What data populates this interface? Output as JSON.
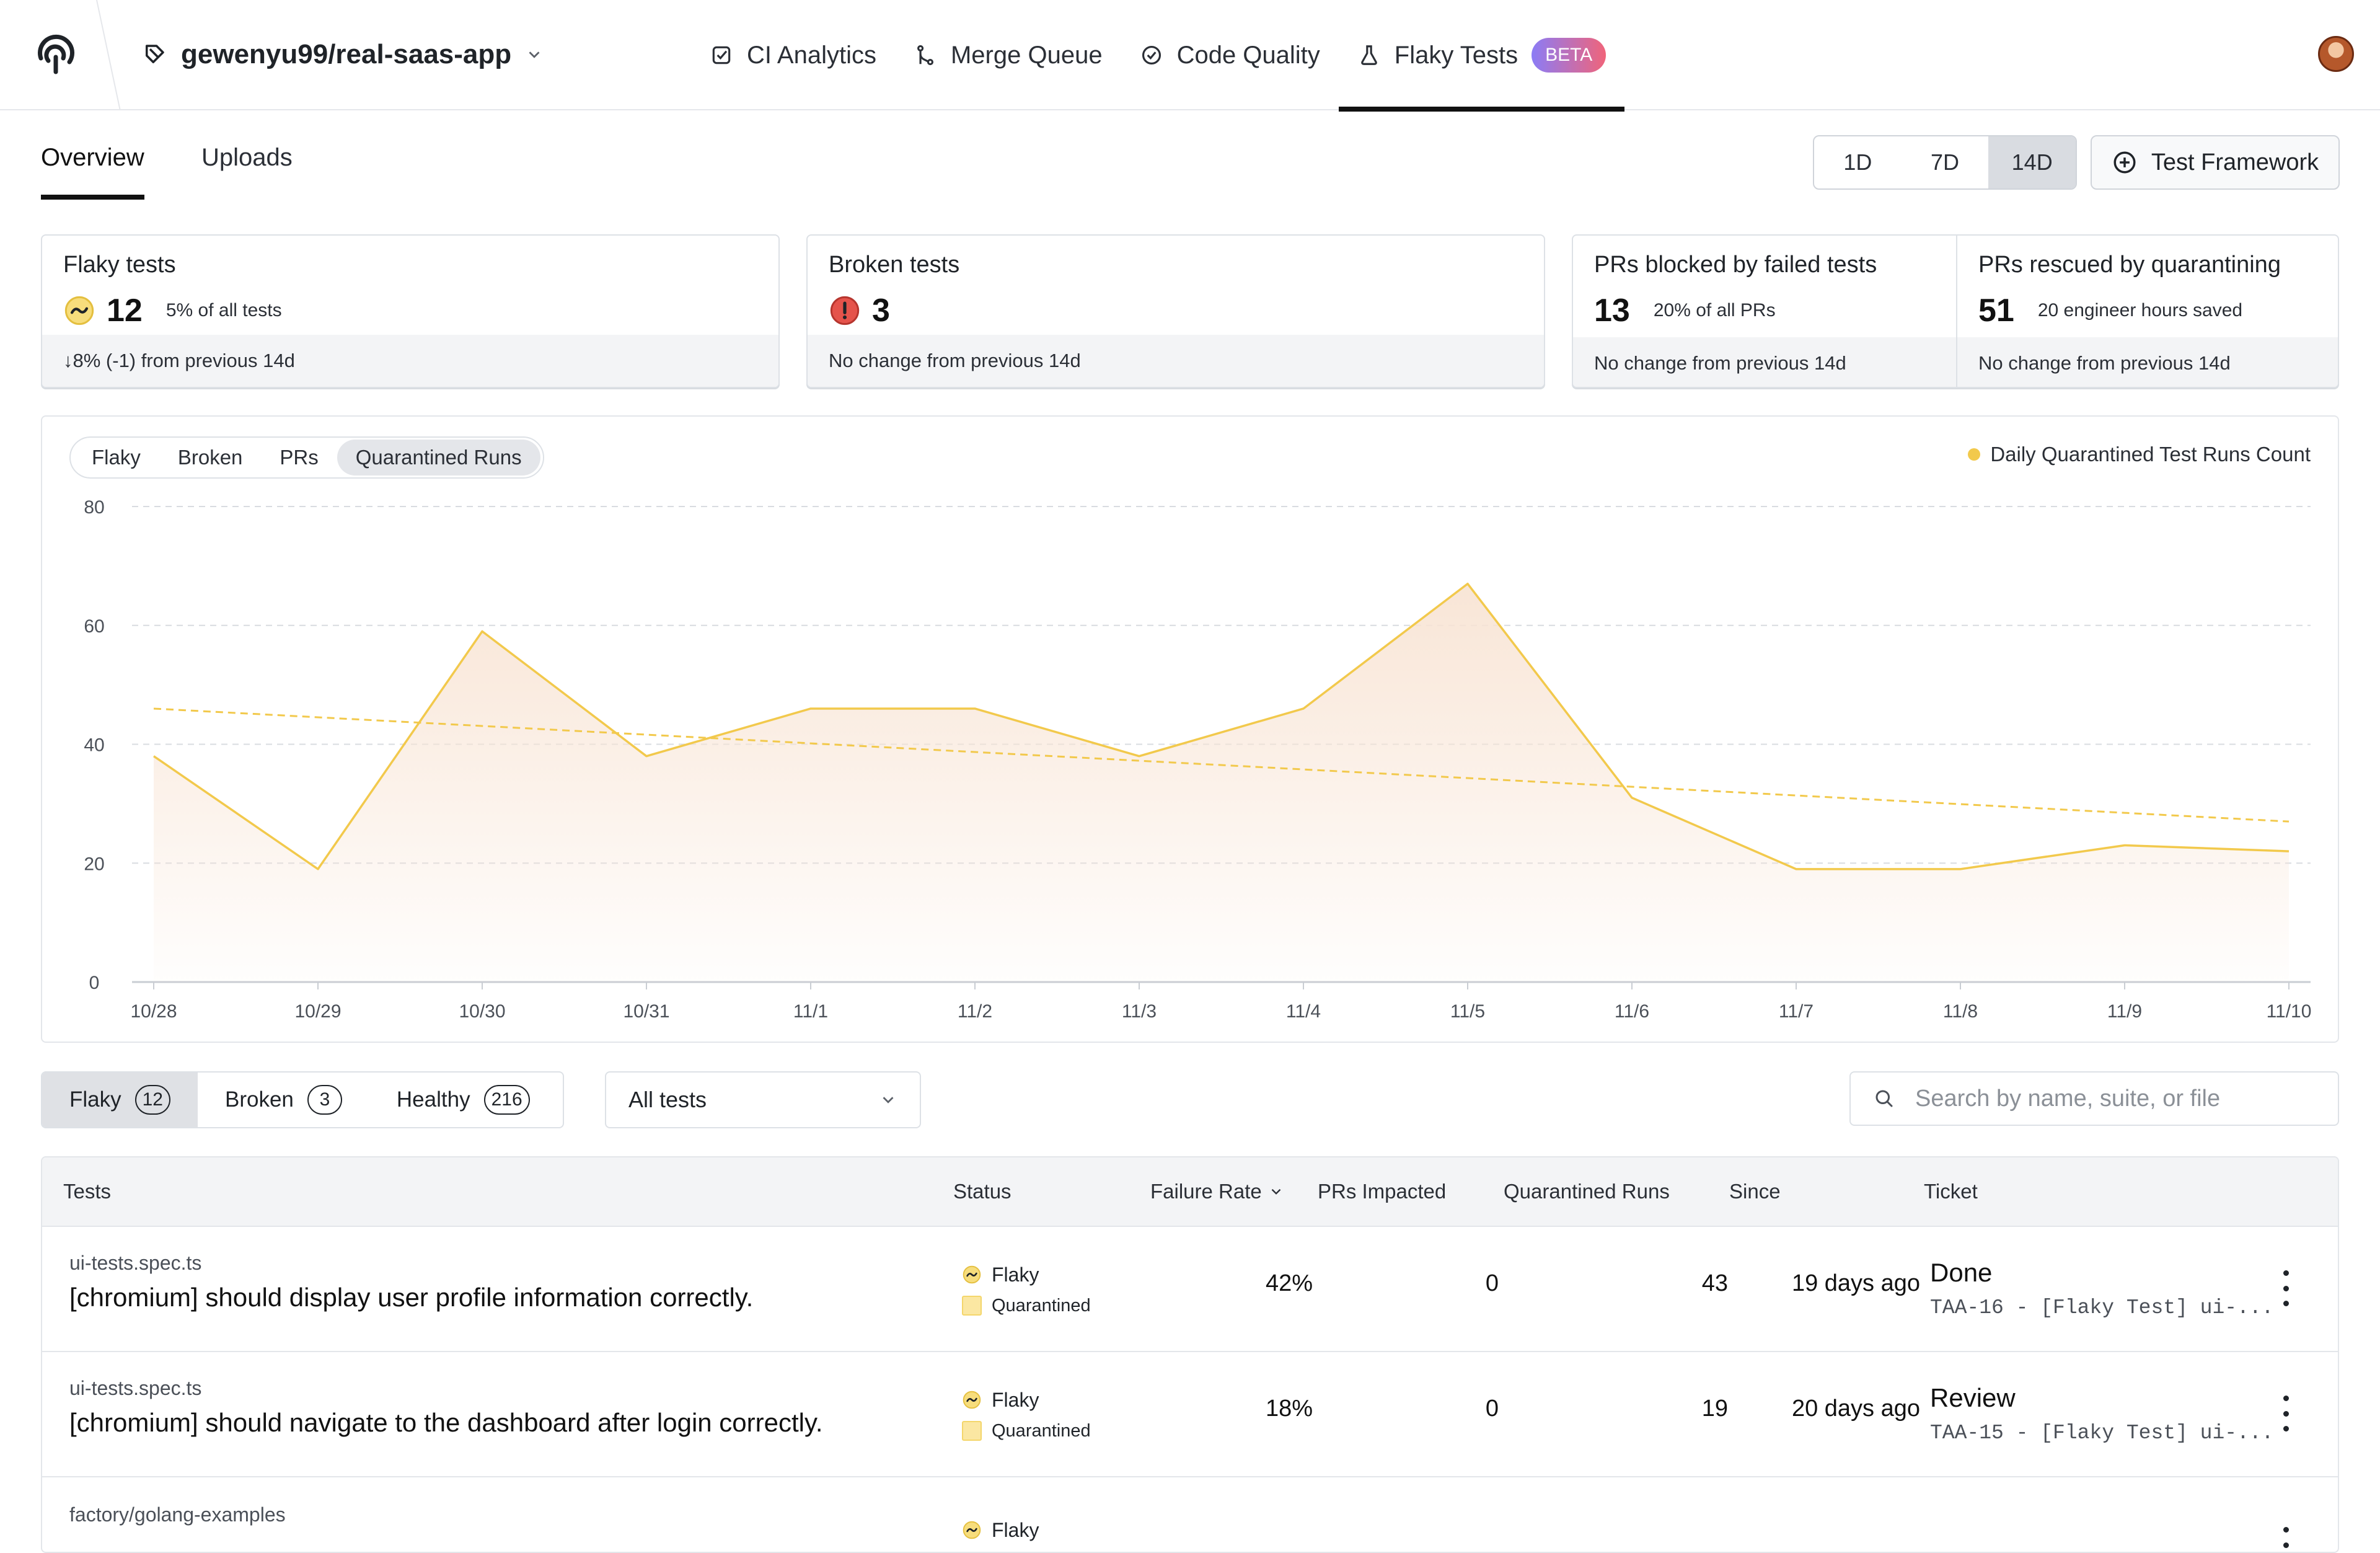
{
  "colors": {
    "accent": "#111111",
    "flaky_icon": "#f5d66b",
    "broken_icon": "#e5534b",
    "chart_line": "#f2c94c",
    "chart_fill": "#f8e4d4"
  },
  "header": {
    "repo": "gewenyu99/real-saas-app",
    "nav": [
      {
        "label": "CI Analytics",
        "icon": "checkbox-icon"
      },
      {
        "label": "Merge Queue",
        "icon": "merge-icon"
      },
      {
        "label": "Code Quality",
        "icon": "check-circle-icon"
      },
      {
        "label": "Flaky Tests",
        "icon": "flask-icon",
        "badge": "BETA",
        "active": true
      }
    ]
  },
  "subtabs": [
    "Overview",
    "Uploads"
  ],
  "range": {
    "options": [
      "1D",
      "7D",
      "14D"
    ],
    "selected": "14D"
  },
  "test_framework_label": "Test Framework",
  "cards": {
    "flaky": {
      "title": "Flaky tests",
      "value": "12",
      "sub": "5% of all tests",
      "foot": "↓8% (-1) from previous 14d"
    },
    "broken": {
      "title": "Broken tests",
      "value": "3",
      "foot": "No change from previous 14d"
    },
    "blocked": {
      "title": "PRs blocked by failed tests",
      "value": "13",
      "sub": "20% of all PRs",
      "foot": "No change from previous 14d"
    },
    "rescued": {
      "title": "PRs rescued by quarantining",
      "value": "51",
      "sub": "20 engineer hours saved",
      "foot": "No change from previous 14d"
    }
  },
  "chart_tabs": [
    "Flaky",
    "Broken",
    "PRs",
    "Quarantined Runs"
  ],
  "chart_tab_selected": "Quarantined Runs",
  "chart_data": {
    "type": "area",
    "legend": "Daily Quarantined Test Runs Count",
    "legend_position": "top-right",
    "categories": [
      "10/28",
      "10/29",
      "10/30",
      "10/31",
      "11/1",
      "11/2",
      "11/3",
      "11/4",
      "11/5",
      "11/6",
      "11/7",
      "11/8",
      "11/9",
      "11/10"
    ],
    "series": [
      {
        "name": "Daily Quarantined Test Runs Count",
        "values": [
          38,
          19,
          59,
          38,
          46,
          46,
          38,
          46,
          67,
          31,
          19,
          19,
          23,
          22
        ]
      }
    ],
    "trendline": {
      "start": 46,
      "end": 27,
      "style": "dashed"
    },
    "yticks": [
      "80",
      "60",
      "40",
      "20",
      "0"
    ],
    "ylim": [
      0,
      80
    ],
    "grid": true
  },
  "filters": {
    "tabs": [
      {
        "label": "Flaky",
        "count": "12",
        "active": true
      },
      {
        "label": "Broken",
        "count": "3"
      },
      {
        "label": "Healthy",
        "count": "216"
      }
    ],
    "dropdown": "All tests",
    "search_placeholder": "Search by name, suite, or file"
  },
  "table": {
    "headers": {
      "tests": "Tests",
      "status": "Status",
      "failure_rate": "Failure Rate",
      "prs": "PRs Impacted",
      "quarantined": "Quarantined Runs",
      "since": "Since",
      "ticket": "Ticket"
    },
    "rows": [
      {
        "file": "ui-tests.spec.ts",
        "name": "[chromium] should display user profile information correctly.",
        "status": "Flaky",
        "substatus": "Quarantined",
        "failure_rate": "42%",
        "prs": "0",
        "quarantined": "43",
        "since": "19 days ago",
        "ticket_status": "Done",
        "ticket_desc": "TAA-16 - [Flaky Test] ui-..."
      },
      {
        "file": "ui-tests.spec.ts",
        "name": "[chromium] should navigate to the dashboard after login correctly.",
        "status": "Flaky",
        "substatus": "Quarantined",
        "failure_rate": "18%",
        "prs": "0",
        "quarantined": "19",
        "since": "20 days ago",
        "ticket_status": "Review",
        "ticket_desc": "TAA-15 - [Flaky Test] ui-..."
      },
      {
        "file": "factory/golang-examples",
        "name": "",
        "status": "Flaky",
        "substatus": "",
        "failure_rate": "",
        "prs": "",
        "quarantined": "",
        "since": "",
        "ticket_status": "",
        "ticket_desc": ""
      }
    ]
  }
}
